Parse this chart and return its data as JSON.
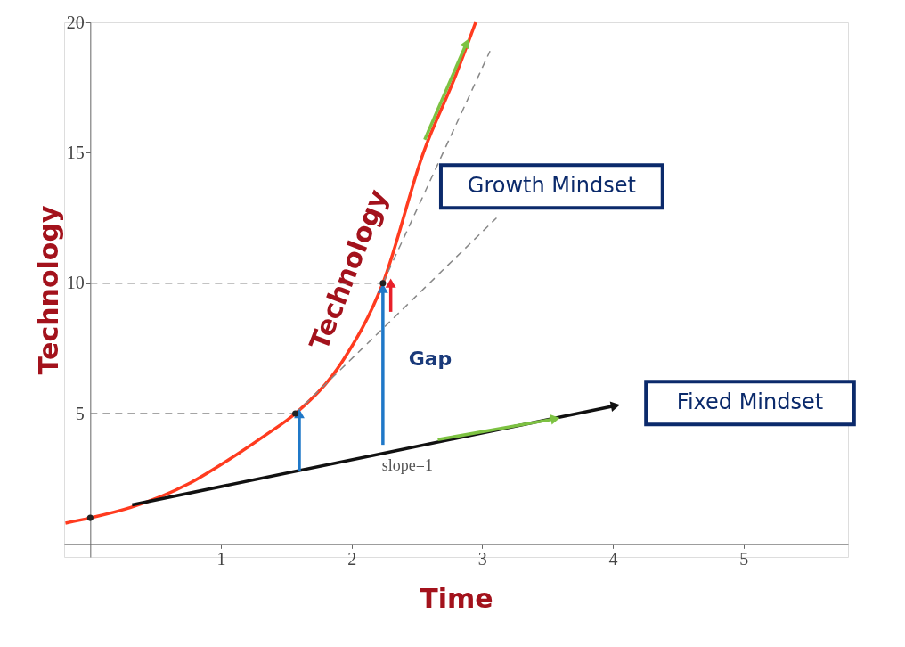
{
  "chart_data": {
    "type": "line",
    "xlabel": "Time",
    "ylabel": "Technology",
    "xlim": [
      -0.2,
      5.8
    ],
    "ylim": [
      -0.5,
      20
    ],
    "xticks": [
      1,
      2,
      3,
      4,
      5
    ],
    "yticks": [
      5,
      10,
      15,
      20
    ],
    "grid": false,
    "series": [
      {
        "name": "Technology",
        "color": "#ff3b1f",
        "x": [
          -0.19,
          0,
          0.31,
          0.75,
          1.05,
          1.35,
          1.57,
          1.93,
          2.24,
          2.55,
          2.8,
          2.95
        ],
        "values": [
          0.8,
          1.0,
          1.4,
          2.3,
          3.2,
          4.2,
          5.0,
          7.0,
          10.0,
          15.0,
          18.0,
          20.0
        ],
        "line_style": "solid",
        "marker": "none"
      },
      {
        "color": "#111111",
        "x": [
          0.32,
          4.02
        ],
        "values": [
          1.5,
          5.3
        ],
        "line_style": "solid",
        "marker": "triangle"
      },
      {
        "color": "#888888",
        "x": [
          0,
          1.57
        ],
        "values": [
          5,
          5
        ],
        "line_style": "dashed",
        "marker": "none"
      },
      {
        "color": "#888888",
        "x": [
          0,
          2.24
        ],
        "values": [
          10,
          10
        ],
        "line_style": "dashed",
        "marker": "none"
      },
      {
        "color": "#888888",
        "x": [
          1.57,
          3.11
        ],
        "values": [
          5,
          12.5
        ],
        "line_style": "dashed",
        "marker": "none"
      },
      {
        "color": "#888888",
        "x": [
          2.24,
          3.06
        ],
        "values": [
          10,
          18.9
        ],
        "line_style": "dashed",
        "marker": "none"
      },
      {
        "color": "#1f78c8",
        "x": [
          1.6,
          1.6
        ],
        "values": [
          2.8,
          5.0
        ],
        "line_style": "solid",
        "marker": "triangle"
      },
      {
        "color": "#1f78c8",
        "x": [
          2.24,
          2.24
        ],
        "values": [
          3.8,
          9.8
        ],
        "line_style": "solid",
        "marker": "triangle"
      },
      {
        "color": "#e8202a",
        "x": [
          2.3,
          2.3
        ],
        "values": [
          8.9,
          10.0
        ],
        "line_style": "solid",
        "marker": "triangle"
      },
      {
        "color": "#7dc242",
        "x": [
          2.56,
          2.88
        ],
        "values": [
          15.5,
          19.2
        ],
        "line_style": "solid",
        "marker": "triangle"
      },
      {
        "color": "#7dc242",
        "x": [
          2.66,
          3.56
        ],
        "values": [
          4.0,
          4.8
        ],
        "line_style": "solid",
        "marker": "triangle"
      },
      {
        "type": "scatter",
        "color": "#222222",
        "x": [
          0,
          1.57,
          2.24
        ],
        "values": [
          1,
          5,
          10
        ],
        "marker": "circle"
      }
    ],
    "annotations": [
      "Gap",
      "slope=1",
      "Growth Mindset",
      "Fixed Mindset"
    ]
  }
}
